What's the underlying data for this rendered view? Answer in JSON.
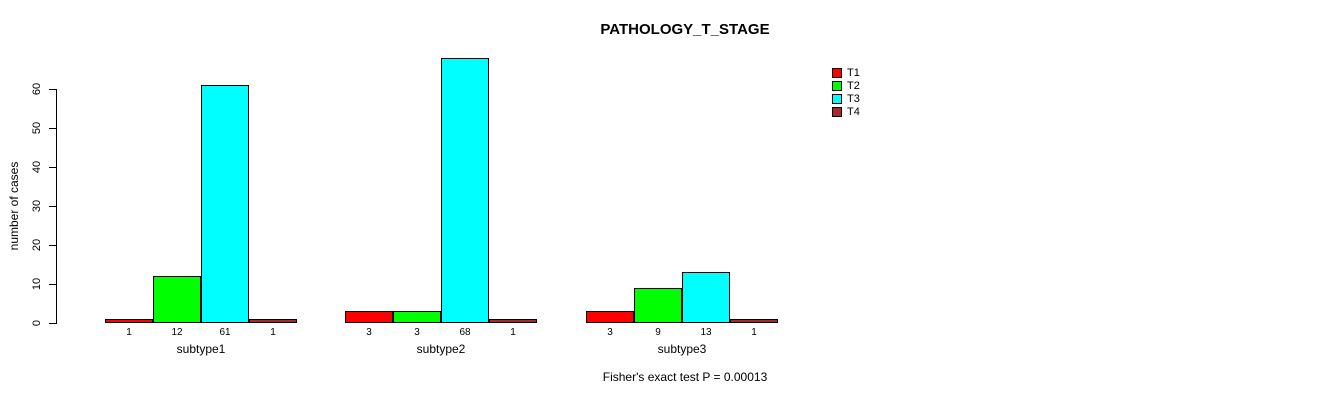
{
  "chart_data": {
    "type": "bar",
    "grouped": true,
    "title": "PATHOLOGY_T_STAGE",
    "ylabel": "number of cases",
    "xlabel": "",
    "footnote": "Fisher's exact test P = 0.00013",
    "categories": [
      "subtype1",
      "subtype2",
      "subtype3"
    ],
    "series": [
      {
        "name": "T1",
        "color": "#ff0000",
        "values": [
          1,
          3,
          3
        ]
      },
      {
        "name": "T2",
        "color": "#00ff00",
        "values": [
          12,
          3,
          9
        ]
      },
      {
        "name": "T3",
        "color": "#00ffff",
        "values": [
          61,
          68,
          13
        ]
      },
      {
        "name": "T4",
        "color": "#a52a2a",
        "values": [
          1,
          1,
          1
        ]
      }
    ],
    "ylim": [
      0,
      60
    ],
    "yticks": [
      0,
      10,
      20,
      30,
      40,
      50,
      60
    ],
    "bar_value_labels": true,
    "legend": {
      "position": "top-right",
      "entries": [
        "T1",
        "T2",
        "T3",
        "T4"
      ]
    },
    "grid": false,
    "background": "#ffffff",
    "axis_color": "#000000"
  }
}
